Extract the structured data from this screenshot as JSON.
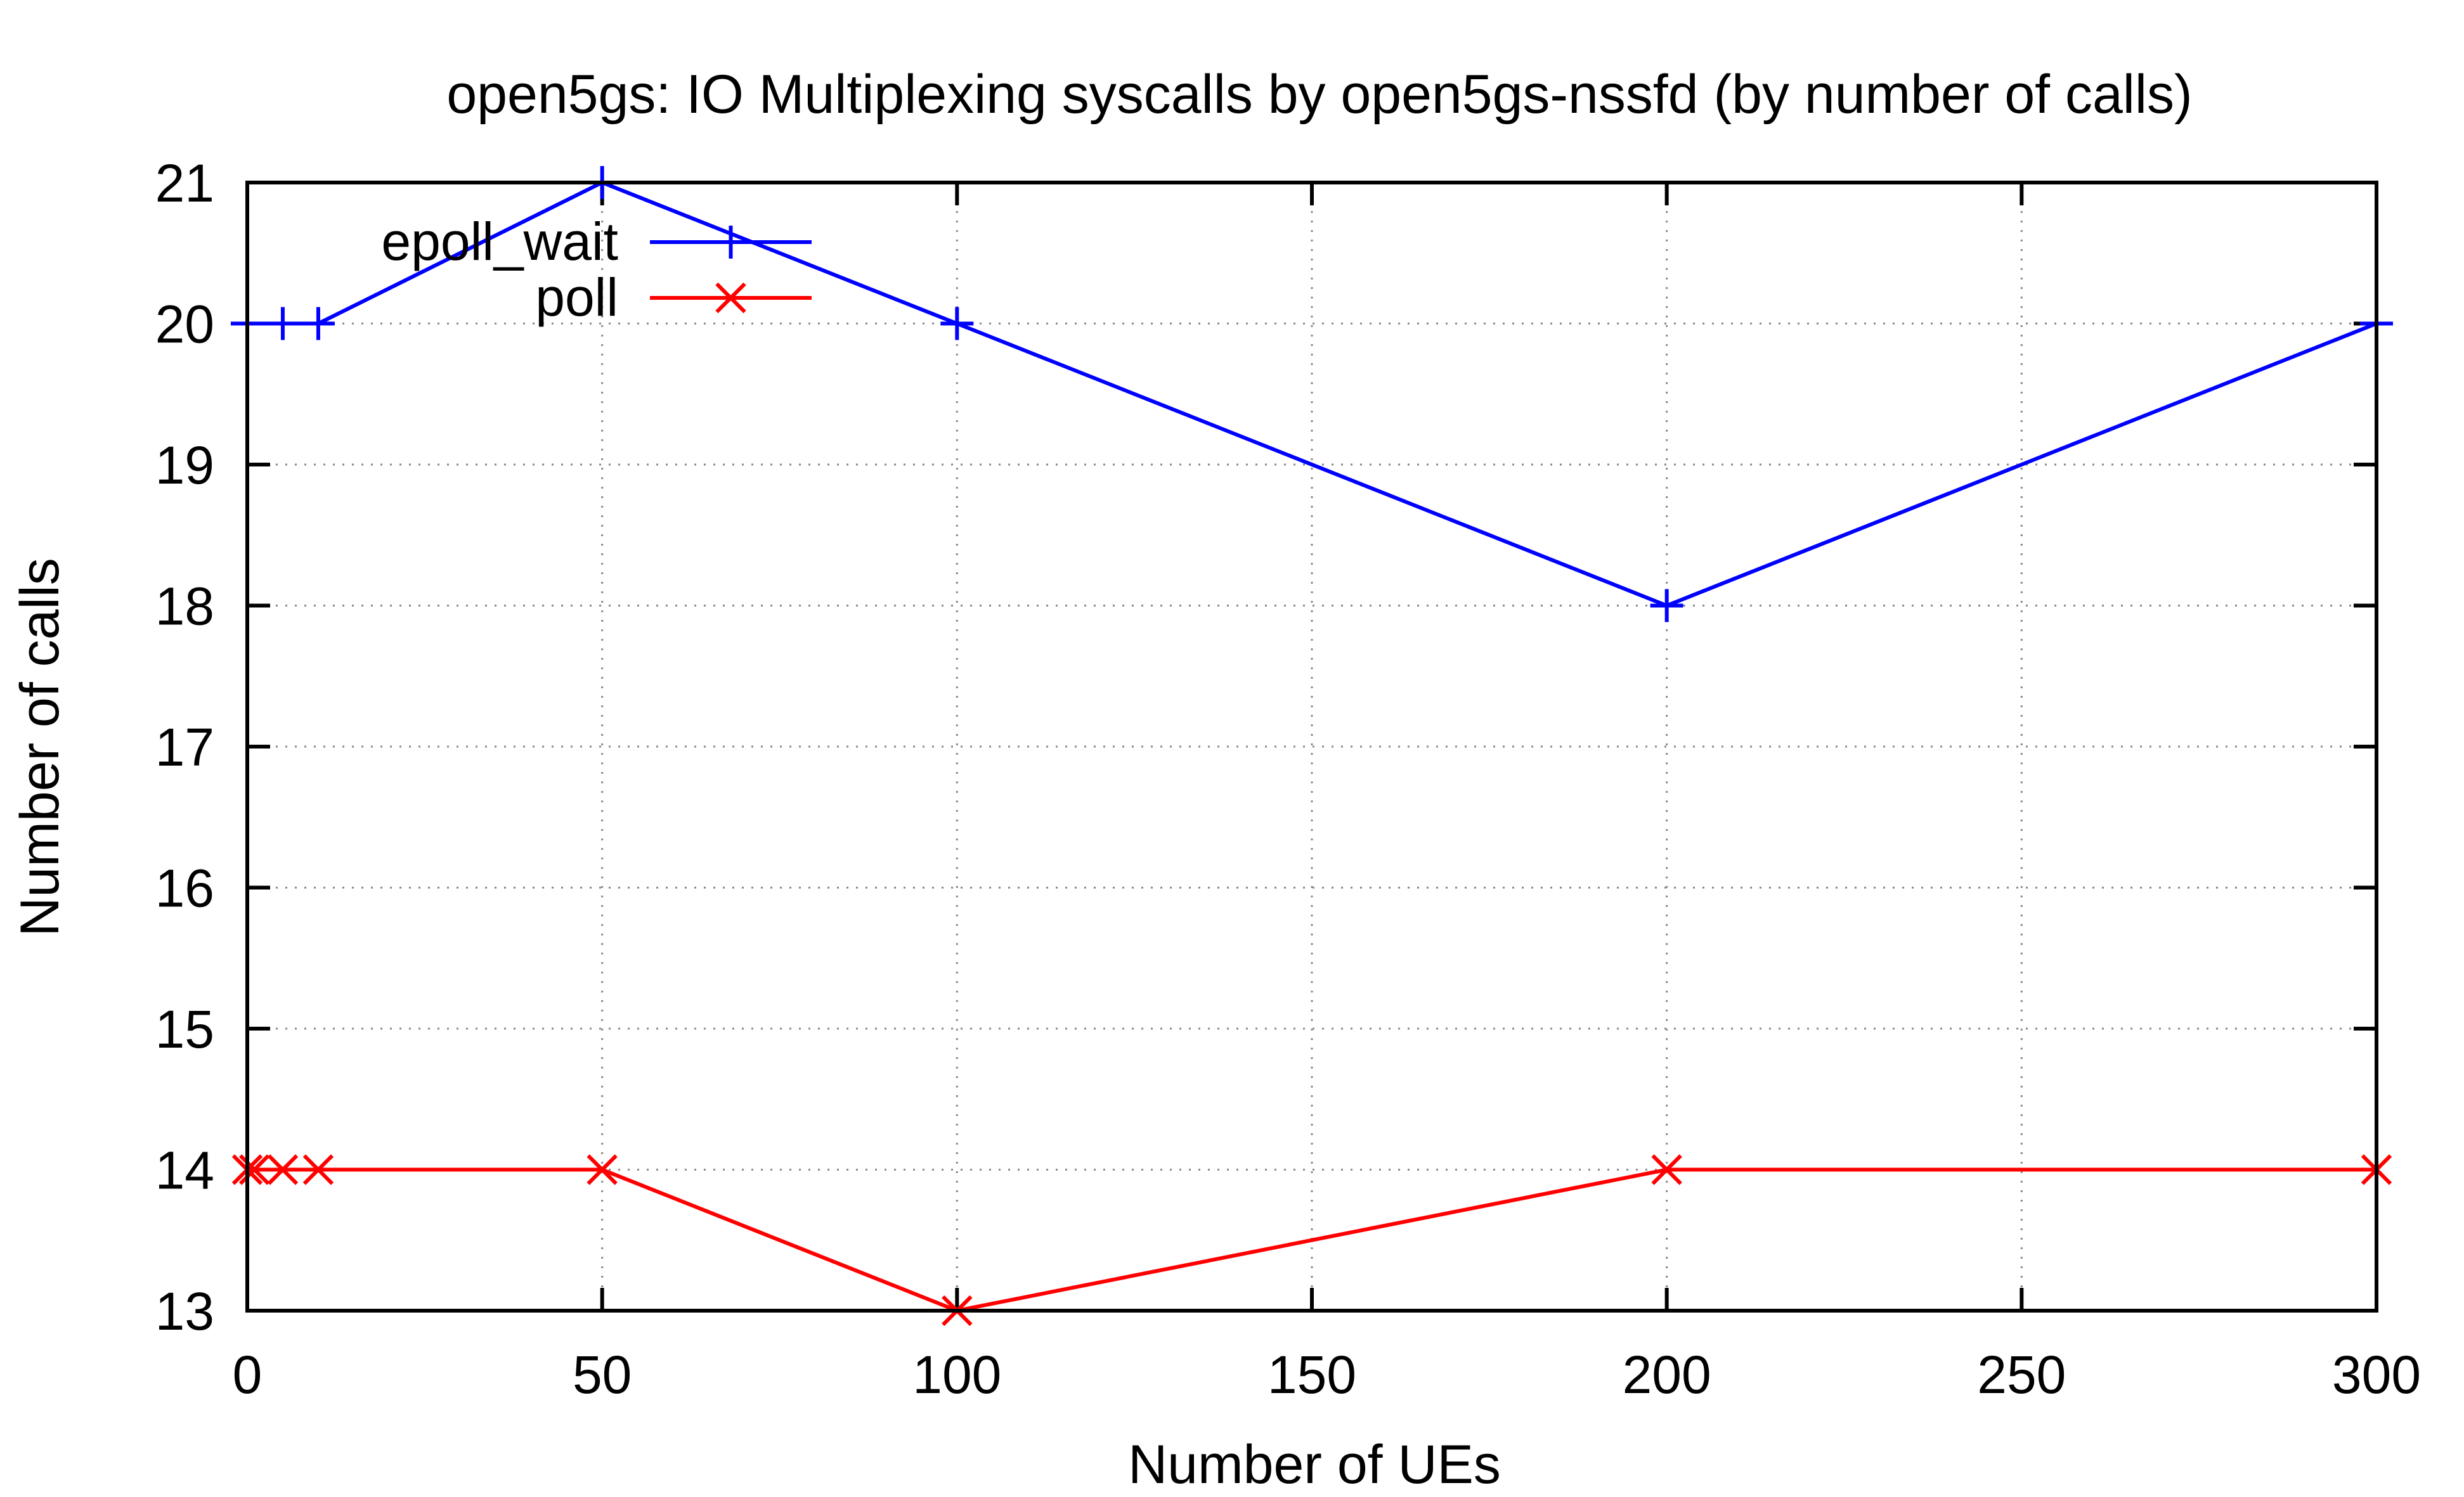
{
  "chart_data": {
    "type": "line",
    "title": "open5gs: IO Multiplexing syscalls by open5gs-nssfd (by number of calls)",
    "xlabel": "Number of UEs",
    "ylabel": "Number of calls",
    "xlim": [
      0,
      300
    ],
    "ylim": [
      13,
      21
    ],
    "xticks": [
      0,
      50,
      100,
      150,
      200,
      250,
      300
    ],
    "yticks": [
      13,
      14,
      15,
      16,
      17,
      18,
      19,
      20,
      21
    ],
    "grid": true,
    "legend_position": "top-left",
    "series": [
      {
        "name": "epoll_wait",
        "color": "#0000ff",
        "marker": "plus",
        "x": [
          0,
          5,
          10,
          50,
          100,
          200,
          300
        ],
        "y": [
          20,
          20,
          20,
          21,
          20,
          18,
          20
        ]
      },
      {
        "name": "poll",
        "color": "#ff0000",
        "marker": "cross",
        "x": [
          0,
          1,
          5,
          10,
          50,
          100,
          200,
          300
        ],
        "y": [
          14,
          14,
          14,
          14,
          14,
          13,
          14,
          14
        ]
      }
    ]
  }
}
